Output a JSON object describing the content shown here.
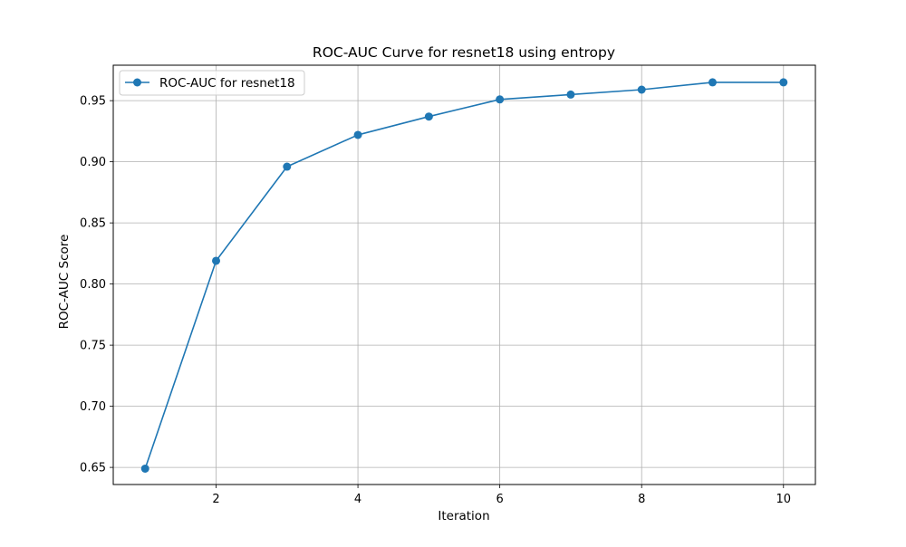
{
  "chart_data": {
    "type": "line",
    "title": "ROC-AUC Curve for resnet18 using entropy",
    "xlabel": "Iteration",
    "ylabel": "ROC-AUC Score",
    "xlim": [
      0.55,
      10.45
    ],
    "ylim": [
      0.636,
      0.979
    ],
    "xticks": [
      2,
      4,
      6,
      8,
      10
    ],
    "yticks": [
      0.65,
      0.7,
      0.75,
      0.8,
      0.85,
      0.9,
      0.95
    ],
    "xtick_labels": [
      "2",
      "4",
      "6",
      "8",
      "10"
    ],
    "ytick_labels": [
      "0.65",
      "0.70",
      "0.75",
      "0.80",
      "0.85",
      "0.90",
      "0.95"
    ],
    "grid": true,
    "legend_position": "top-left",
    "series": [
      {
        "name": "ROC-AUC for resnet18",
        "color": "#1f77b4",
        "marker": "circle",
        "x": [
          1,
          2,
          3,
          4,
          5,
          6,
          7,
          8,
          9,
          10
        ],
        "values": [
          0.649,
          0.819,
          0.896,
          0.922,
          0.937,
          0.951,
          0.955,
          0.959,
          0.965,
          0.965
        ]
      }
    ]
  }
}
